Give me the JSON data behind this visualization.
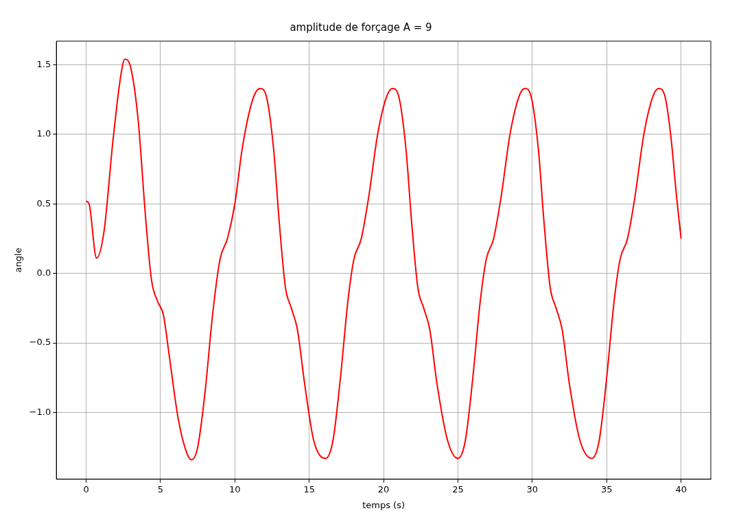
{
  "chart_data": {
    "type": "line",
    "title": "amplitude de forçage A = 9",
    "xlabel": "temps (s)",
    "ylabel": "angle",
    "x": [
      0,
      0.2,
      0.7,
      1.2,
      1.8,
      2.3,
      2.6,
      3.0,
      3.5,
      4.0,
      4.4,
      4.8,
      5.2,
      5.6,
      6.2,
      6.8,
      7.1,
      7.5,
      8.0,
      8.5,
      9.0,
      9.5,
      10.0,
      10.5,
      11.2,
      11.7,
      12.1,
      12.6,
      13.0,
      13.4,
      13.8,
      14.2,
      14.7,
      15.3,
      16.1,
      16.6,
      17.1,
      17.6,
      18.0,
      18.5,
      19.0,
      19.6,
      20.2,
      20.6,
      21.0,
      21.5,
      21.9,
      22.3,
      22.7,
      23.1,
      23.6,
      24.3,
      25.0,
      25.5,
      26.0,
      26.5,
      26.9,
      27.4,
      27.9,
      28.5,
      29.1,
      29.5,
      29.9,
      30.4,
      30.8,
      31.2,
      31.6,
      32.0,
      32.5,
      33.2,
      34.0,
      34.5,
      35.0,
      35.5,
      35.9,
      36.4,
      36.9,
      37.5,
      38.1,
      38.5,
      38.9,
      39.3,
      39.7,
      40.0
    ],
    "series": [
      {
        "color": "#ff0000",
        "values": [
          0.52,
          0.5,
          0.11,
          0.3,
          0.95,
          1.4,
          1.54,
          1.48,
          1.1,
          0.4,
          -0.05,
          -0.2,
          -0.3,
          -0.6,
          -1.05,
          -1.3,
          -1.34,
          -1.25,
          -0.85,
          -0.3,
          0.1,
          0.25,
          0.5,
          0.9,
          1.25,
          1.33,
          1.28,
          0.9,
          0.35,
          -0.1,
          -0.25,
          -0.4,
          -0.8,
          -1.2,
          -1.33,
          -1.2,
          -0.75,
          -0.2,
          0.1,
          0.25,
          0.55,
          1.0,
          1.27,
          1.33,
          1.28,
          0.9,
          0.35,
          -0.1,
          -0.25,
          -0.4,
          -0.8,
          -1.2,
          -1.33,
          -1.2,
          -0.75,
          -0.2,
          0.1,
          0.25,
          0.55,
          1.0,
          1.27,
          1.33,
          1.28,
          0.9,
          0.35,
          -0.1,
          -0.25,
          -0.4,
          -0.8,
          -1.2,
          -1.33,
          -1.2,
          -0.75,
          -0.2,
          0.1,
          0.25,
          0.55,
          1.0,
          1.27,
          1.33,
          1.28,
          1.0,
          0.55,
          0.25
        ]
      }
    ],
    "xlim": [
      -2,
      42
    ],
    "xticks": [
      0,
      5,
      10,
      15,
      20,
      25,
      30,
      35,
      40
    ],
    "ylim": [
      -1.48,
      1.67
    ],
    "yticks": [
      {
        "value": -1,
        "label": "−1.0"
      },
      {
        "value": -0.5,
        "label": "−0.5"
      },
      {
        "value": 0,
        "label": "0.0"
      },
      {
        "value": 0.5,
        "label": "0.5"
      },
      {
        "value": 1,
        "label": "1.0"
      },
      {
        "value": 1.5,
        "label": "1.5"
      }
    ],
    "grid": true,
    "legend": false,
    "marker": "none",
    "line_style": "solid"
  }
}
